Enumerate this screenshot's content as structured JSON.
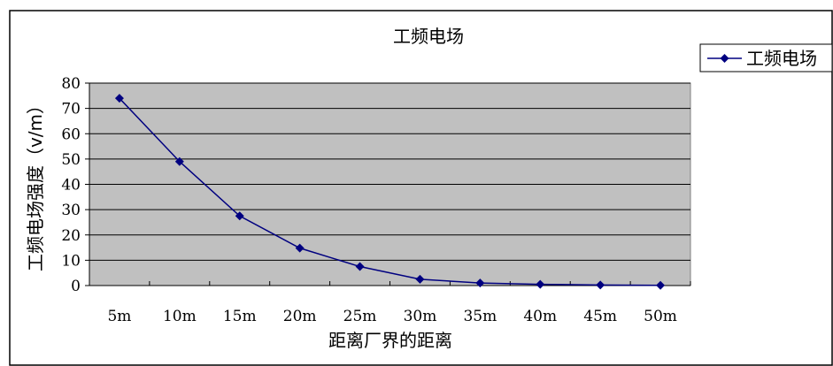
{
  "chart_data": {
    "type": "line",
    "title": "工频电场",
    "xlabel": "距离厂界的距离",
    "ylabel": "工频电场强度（v/m）",
    "categories": [
      "5m",
      "10m",
      "15m",
      "20m",
      "25m",
      "30m",
      "35m",
      "40m",
      "45m",
      "50m"
    ],
    "series": [
      {
        "name": "工频电场",
        "values": [
          74,
          49,
          27.5,
          14.8,
          7.5,
          2.5,
          1.0,
          0.5,
          0.2,
          0.1
        ]
      }
    ],
    "ylim": [
      0,
      80
    ],
    "yticks": [
      0,
      10,
      20,
      30,
      40,
      50,
      60,
      70,
      80
    ],
    "grid": true,
    "legend_position": "right",
    "colors": {
      "plot_background": "#c0c0c0",
      "series_line": "#000080",
      "gridline": "#000000"
    }
  }
}
